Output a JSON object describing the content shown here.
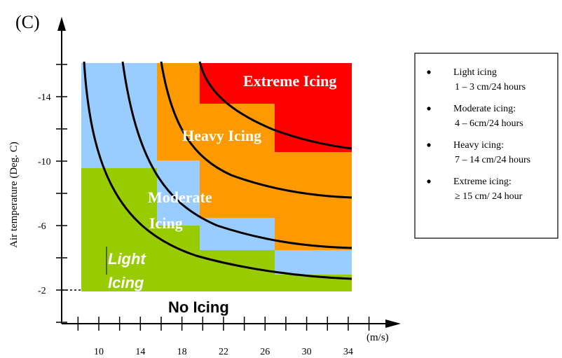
{
  "panel_label": "(C)",
  "chart_data": {
    "type": "heatmap",
    "title": "",
    "xlabel": "(m/s)",
    "ylabel": "Air temperature (Deg. C)",
    "x_ticks": [
      "10",
      "14",
      "18",
      "22",
      "26",
      "30",
      "34"
    ],
    "y_ticks": [
      "-14",
      "-10",
      "-6",
      "-2"
    ],
    "xlim": [
      8,
      36
    ],
    "ylim": [
      0,
      -17
    ],
    "colors": {
      "no_icing": "#ffffff",
      "light": "#99cc00",
      "moderate": "#99ccff",
      "heavy": "#ff9900",
      "extreme": "#ff0000"
    },
    "region_labels": {
      "extreme": "Extreme Icing",
      "heavy": "Heavy Icing",
      "moderate_1": "Moderate",
      "moderate_2": "Icing",
      "light_1": "Light",
      "light_2": "Icing",
      "none": "No Icing"
    },
    "legend": {
      "placement": "right",
      "items": [
        {
          "title": "Light icing",
          "detail": "1 – 3 cm/24 hours"
        },
        {
          "title": "Moderate icing:",
          "detail": "4 – 6cm/24 hours"
        },
        {
          "title": "Heavy icing:",
          "detail": "7 – 14 cm/24 hours"
        },
        {
          "title": "Extreme icing:",
          "detail": "≥ 15 cm/ 24 hour"
        }
      ]
    }
  }
}
